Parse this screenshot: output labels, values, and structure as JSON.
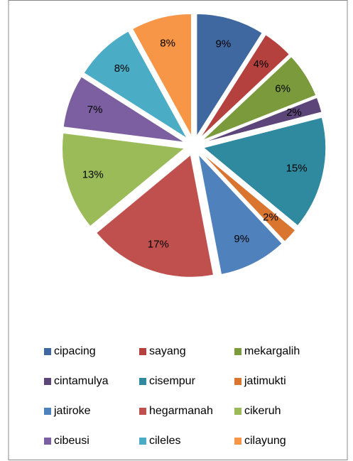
{
  "chart_data": {
    "type": "pie",
    "categories": [
      "cipacing",
      "sayang",
      "mekargalih",
      "cintamulya",
      "cisempur",
      "jatimukti",
      "jatiroke",
      "hegarmanah",
      "cikeruh",
      "cibeusi",
      "cileles",
      "cilayung"
    ],
    "values": [
      9,
      4,
      6,
      2,
      15,
      2,
      9,
      17,
      13,
      7,
      8,
      8
    ],
    "value_labels": [
      "9%",
      "4%",
      "6%",
      "2%",
      "15%",
      "2%",
      "9%",
      "17%",
      "13%",
      "7%",
      "8%",
      "8%"
    ],
    "colors": [
      "#3f67a0",
      "#b5413f",
      "#7a9a3c",
      "#5c4578",
      "#2f8aa0",
      "#d9752f",
      "#4f81bd",
      "#c0504d",
      "#9bbb59",
      "#7b5fa0",
      "#4bacc6",
      "#f79646"
    ],
    "legend": "bottom"
  }
}
